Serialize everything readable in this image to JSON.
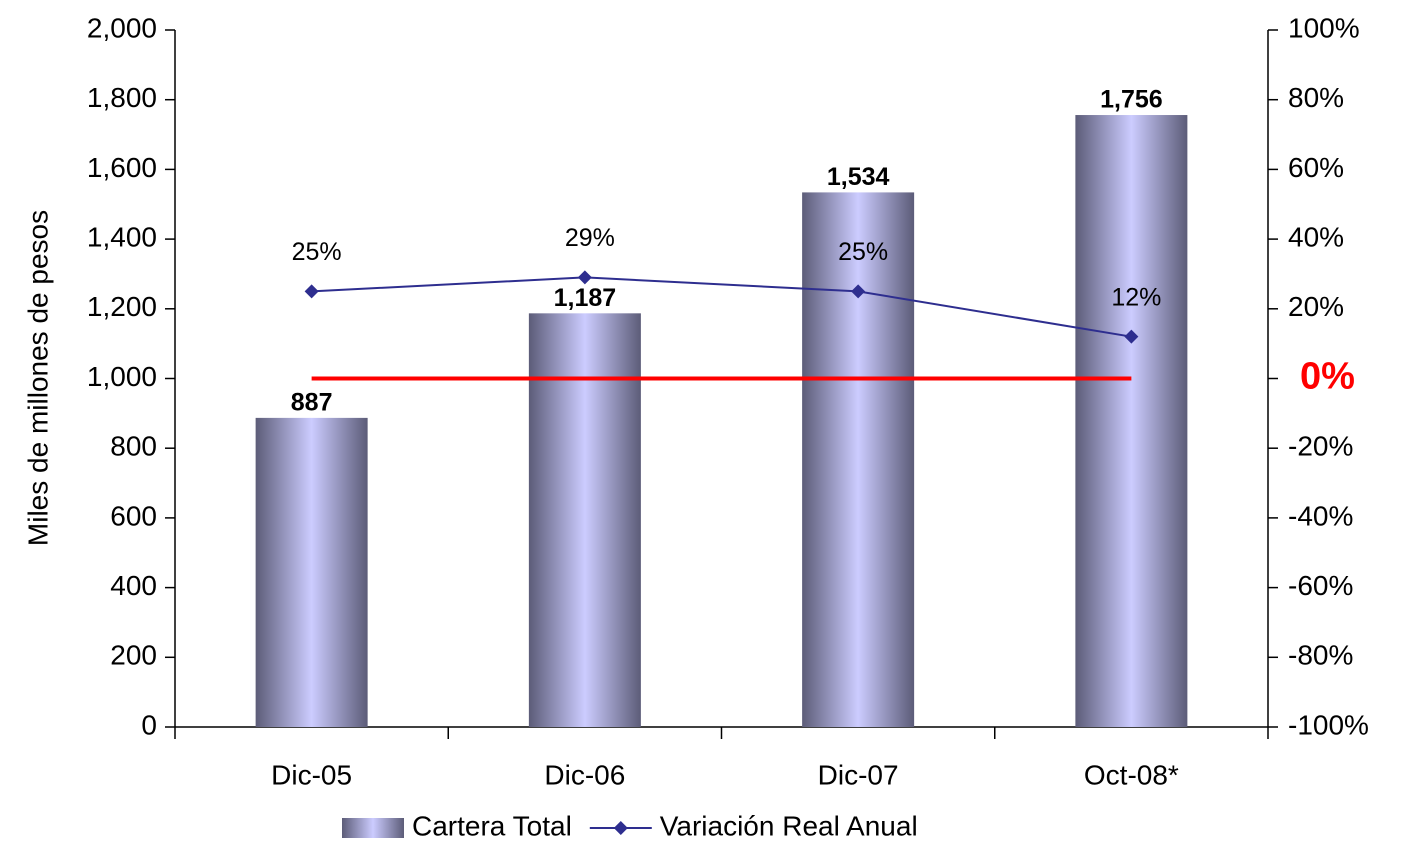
{
  "chart_data": {
    "type": "bar+line",
    "y_label": "Miles de millones de pesos",
    "categories": [
      "Dic-05",
      "Dic-06",
      "Dic-07",
      "Oct-08*"
    ],
    "series": [
      {
        "name": "Cartera Total",
        "type": "bar",
        "color": "#ccccff",
        "values": [
          887,
          1187,
          1534,
          1756
        ],
        "value_labels": [
          "887",
          "1,187",
          "1,534",
          "1,756"
        ]
      },
      {
        "name": "Variación Real Anual",
        "type": "line",
        "axis": "y2",
        "color": "#2e2e8f",
        "values": [
          25,
          29,
          25,
          12
        ],
        "value_labels": [
          "25%",
          "29%",
          "25%",
          "12%"
        ]
      }
    ],
    "ylim": [
      0,
      2000
    ],
    "yticks": [
      0,
      200,
      400,
      600,
      800,
      {
        "value": 1000,
        "label": "1,000"
      },
      {
        "value": 1200,
        "label": "1,200"
      },
      {
        "value": 1400,
        "label": "1,400"
      },
      {
        "value": 1600,
        "label": "1,600"
      },
      {
        "value": 1800,
        "label": "1,800"
      },
      {
        "value": 2000,
        "label": "2,000"
      }
    ],
    "y2lim": [
      -100,
      100
    ],
    "y2ticks": [
      {
        "value": -100,
        "label": "-100%"
      },
      {
        "value": -80,
        "label": "-80%"
      },
      {
        "value": -60,
        "label": "-60%"
      },
      {
        "value": -40,
        "label": "-40%"
      },
      {
        "value": -20,
        "label": "-20%"
      },
      {
        "value": 0,
        "label": "0%"
      },
      {
        "value": 20,
        "label": "20%"
      },
      {
        "value": 40,
        "label": "40%"
      },
      {
        "value": 60,
        "label": "60%"
      },
      {
        "value": 80,
        "label": "80%"
      },
      {
        "value": 100,
        "label": "100%"
      }
    ],
    "zero_line_color": "#ff0000",
    "legend": "bottom"
  }
}
